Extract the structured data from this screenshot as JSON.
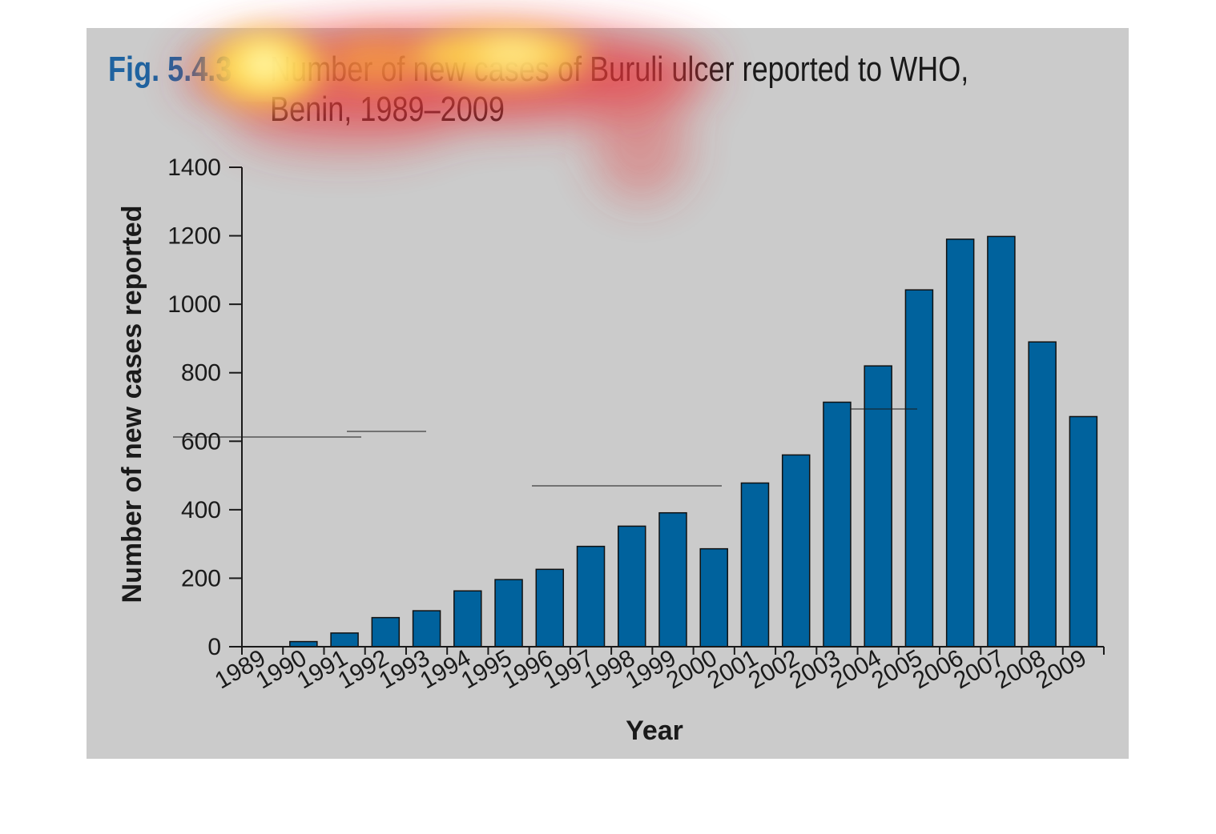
{
  "figure": {
    "label": "Fig. 5.4.3",
    "title_line1": "Number of new cases of Buruli ulcer reported to WHO,",
    "title_line2": "Benin, 1989–2009"
  },
  "colors": {
    "panel": "#cbcbcb",
    "bar": "#00629d",
    "label_accent": "#1f63a0",
    "text": "#1a1a1a"
  },
  "chart_data": {
    "type": "bar",
    "title": "Number of new cases of Buruli ulcer reported to WHO, Benin, 1989–2009",
    "xlabel": "Year",
    "ylabel": "Number of new cases reported",
    "ylim": [
      0,
      1400
    ],
    "yticks": [
      0,
      200,
      400,
      600,
      800,
      1000,
      1200,
      1400
    ],
    "grid": false,
    "categories": [
      "1989",
      "1990",
      "1991",
      "1992",
      "1993",
      "1994",
      "1995",
      "1996",
      "1997",
      "1998",
      "1999",
      "2000",
      "2001",
      "2002",
      "2003",
      "2004",
      "2005",
      "2006",
      "2007",
      "2008",
      "2009"
    ],
    "values": [
      0,
      15,
      40,
      85,
      105,
      163,
      196,
      226,
      293,
      352,
      391,
      286,
      478,
      560,
      714,
      820,
      1042,
      1190,
      1198,
      890,
      672
    ]
  }
}
